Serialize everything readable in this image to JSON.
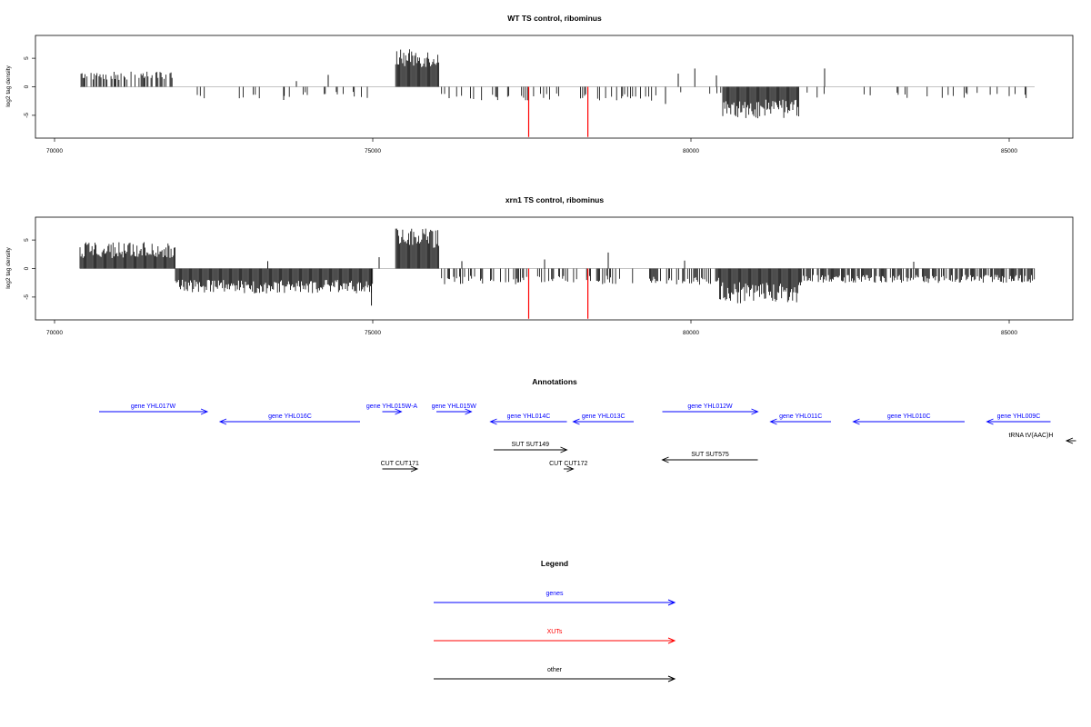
{
  "colors": {
    "gene": "#0000ff",
    "xut": "#ff0000",
    "other": "#000000",
    "bar": "#000000"
  },
  "chart_data": [
    {
      "type": "bar",
      "title": "WT TS control, ribominus",
      "ylabel": "log2 tag density",
      "xticks": [
        "70000",
        "75000",
        "80000",
        "85000"
      ],
      "yticks": [
        "5",
        "0",
        "-5"
      ],
      "xlim": [
        69700,
        86000
      ],
      "ylim": [
        -9,
        9
      ],
      "x_range": [
        70400,
        85400
      ],
      "regions": [
        {
          "from": 70400,
          "to": 71850,
          "sign": 1,
          "density": 0.55,
          "mean": 1.7,
          "spread": 1.5
        },
        {
          "from": 71850,
          "to": 75300,
          "sign": -1,
          "density": 0.08,
          "mean": 1.3,
          "spread": 1.2
        },
        {
          "from": 75360,
          "to": 76050,
          "sign": 1,
          "density": 1.0,
          "mean": 4.5,
          "spread": 3.2
        },
        {
          "from": 76050,
          "to": 79400,
          "sign": -1,
          "density": 0.18,
          "mean": 1.6,
          "spread": 1.3
        },
        {
          "from": 79400,
          "to": 80500,
          "sign": -1,
          "density": 0.12,
          "mean": 1.2,
          "spread": 1.0
        },
        {
          "from": 80500,
          "to": 81700,
          "sign": -1,
          "density": 1.0,
          "mean": 3.4,
          "spread": 3.3
        },
        {
          "from": 81700,
          "to": 85400,
          "sign": -1,
          "density": 0.1,
          "mean": 1.4,
          "spread": 1.2
        }
      ],
      "extra_bars": [
        {
          "x": 74300,
          "y": 2.1
        },
        {
          "x": 73600,
          "y": -2.3
        },
        {
          "x": 73800,
          "y": 1.0
        },
        {
          "x": 79800,
          "y": 2.3
        },
        {
          "x": 80060,
          "y": 3.2
        },
        {
          "x": 80400,
          "y": 2.0
        },
        {
          "x": 82100,
          "y": 3.2
        },
        {
          "x": 79600,
          "y": -3.0
        },
        {
          "x": 76200,
          "y": -2.0
        }
      ],
      "highlight": [
        {
          "x": 77450,
          "y": -8.8
        },
        {
          "x": 78380,
          "y": -8.8
        }
      ]
    },
    {
      "type": "bar",
      "title": "xrn1 TS control, ribominus",
      "ylabel": "log2 tag density",
      "xticks": [
        "70000",
        "75000",
        "80000",
        "85000"
      ],
      "yticks": [
        "5",
        "0",
        "-5"
      ],
      "xlim": [
        69700,
        86000
      ],
      "ylim": [
        -9,
        9
      ],
      "x_range": [
        70400,
        85400
      ],
      "regions": [
        {
          "from": 70400,
          "to": 71900,
          "sign": 1,
          "density": 1.0,
          "mean": 2.8,
          "spread": 2.8
        },
        {
          "from": 71900,
          "to": 75000,
          "sign": -1,
          "density": 1.0,
          "mean": 2.8,
          "spread": 2.4
        },
        {
          "from": 75360,
          "to": 76050,
          "sign": 1,
          "density": 1.0,
          "mean": 4.8,
          "spread": 3.4
        },
        {
          "from": 76050,
          "to": 79100,
          "sign": -1,
          "density": 0.45,
          "mean": 1.8,
          "spread": 1.5
        },
        {
          "from": 79350,
          "to": 80450,
          "sign": -1,
          "density": 0.6,
          "mean": 1.9,
          "spread": 1.5
        },
        {
          "from": 80450,
          "to": 81750,
          "sign": -1,
          "density": 1.0,
          "mean": 3.7,
          "spread": 3.8
        },
        {
          "from": 81750,
          "to": 85400,
          "sign": -1,
          "density": 0.7,
          "mean": 1.6,
          "spread": 1.4
        }
      ],
      "extra_bars": [
        {
          "x": 75100,
          "y": 2.0
        },
        {
          "x": 76400,
          "y": 1.3
        },
        {
          "x": 77700,
          "y": 1.6
        },
        {
          "x": 78700,
          "y": 2.8
        },
        {
          "x": 79900,
          "y": 1.4
        },
        {
          "x": 74980,
          "y": -6.5
        },
        {
          "x": 73350,
          "y": 1.3
        },
        {
          "x": 83500,
          "y": 1.2
        }
      ],
      "highlight": [
        {
          "x": 77450,
          "y": -8.8
        },
        {
          "x": 78380,
          "y": -8.8
        }
      ]
    }
  ],
  "annotations": {
    "title": "Annotations",
    "features": [
      {
        "label": "gene YHL017W",
        "kind": "gene",
        "from": 70700,
        "to": 72400,
        "dir": "right",
        "row": 0
      },
      {
        "label": "gene YHL016C",
        "kind": "gene",
        "from": 72600,
        "to": 74800,
        "dir": "left",
        "row": 1
      },
      {
        "label": "gene YHL015W-A",
        "kind": "gene",
        "from": 75150,
        "to": 75450,
        "dir": "right",
        "row": 0
      },
      {
        "label": "gene YHL015W",
        "kind": "gene",
        "from": 76000,
        "to": 76550,
        "dir": "right",
        "row": 0
      },
      {
        "label": "gene YHL014C",
        "kind": "gene",
        "from": 76850,
        "to": 78050,
        "dir": "left",
        "row": 1
      },
      {
        "label": "gene YHL013C",
        "kind": "gene",
        "from": 78150,
        "to": 79100,
        "dir": "left",
        "row": 1
      },
      {
        "label": "gene YHL012W",
        "kind": "gene",
        "from": 79550,
        "to": 81050,
        "dir": "right",
        "row": 0
      },
      {
        "label": "gene YHL011C",
        "kind": "gene",
        "from": 81250,
        "to": 82200,
        "dir": "left",
        "row": 1
      },
      {
        "label": "gene YHL010C",
        "kind": "gene",
        "from": 82550,
        "to": 84300,
        "dir": "left",
        "row": 1
      },
      {
        "label": "gene YHL009C",
        "kind": "gene",
        "from": 84650,
        "to": 85650,
        "dir": "left",
        "row": 1
      },
      {
        "label": "tRNA tV(AAC)H",
        "kind": "other",
        "from": 85900,
        "to": 86050,
        "dir": "left",
        "row": 2
      },
      {
        "label": "SUT SUT149",
        "kind": "other",
        "from": 76900,
        "to": 78050,
        "dir": "right",
        "row": 3
      },
      {
        "label": "SUT SUT575",
        "kind": "other",
        "from": 79550,
        "to": 81050,
        "dir": "left",
        "row": 4
      },
      {
        "label": "CUT CUT171",
        "kind": "other",
        "from": 75150,
        "to": 75700,
        "dir": "right",
        "row": 5
      },
      {
        "label": "CUT CUT172",
        "kind": "other",
        "from": 78000,
        "to": 78150,
        "dir": "right",
        "row": 5
      }
    ]
  },
  "legend": {
    "title": "Legend",
    "items": [
      {
        "label": "genes",
        "kind": "gene"
      },
      {
        "label": "XUTs",
        "kind": "xut"
      },
      {
        "label": "other",
        "kind": "other"
      }
    ]
  }
}
